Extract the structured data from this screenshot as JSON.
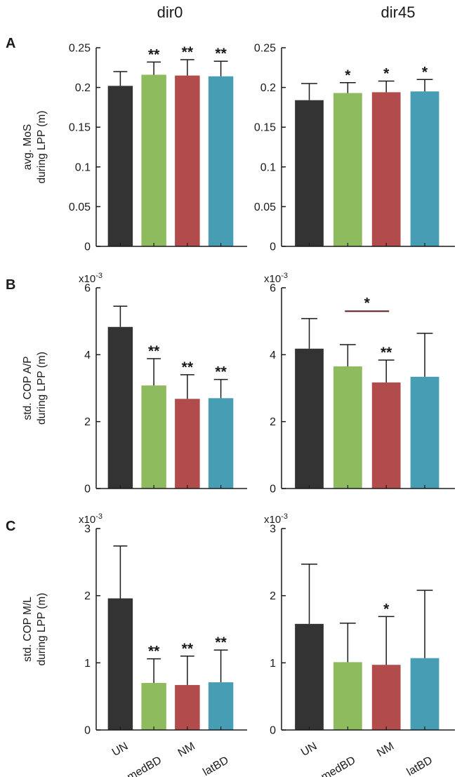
{
  "columns": [
    "dir0",
    "dir45"
  ],
  "categories": [
    "UN",
    "medBD",
    "NM",
    "latBD"
  ],
  "colors": [
    "#333333",
    "#8dbb5e",
    "#b14b4c",
    "#469db4"
  ],
  "chart_data": [
    {
      "type": "bar",
      "panel": "A",
      "column": "dir0",
      "ylabel": [
        "avg. MoS",
        "during LPP (m)"
      ],
      "multiplier": "",
      "ylim": [
        0,
        0.25
      ],
      "yticks": [
        "0",
        "0.05",
        "0.1",
        "0.15",
        "0.2",
        "0.25"
      ],
      "categories": [
        "UN",
        "medBD",
        "NM",
        "latBD"
      ],
      "values": [
        0.202,
        0.216,
        0.215,
        0.214
      ],
      "errors": [
        0.018,
        0.016,
        0.02,
        0.019
      ],
      "stars": [
        "",
        "**",
        "**",
        "**"
      ],
      "bracket": null
    },
    {
      "type": "bar",
      "panel": "",
      "column": "dir45",
      "ylabel": [],
      "multiplier": "",
      "ylim": [
        0,
        0.25
      ],
      "yticks": [
        "0",
        "0.05",
        "0.1",
        "0.15",
        "0.2",
        "0.25"
      ],
      "categories": [
        "UN",
        "medBD",
        "NM",
        "latBD"
      ],
      "values": [
        0.184,
        0.193,
        0.194,
        0.195
      ],
      "errors": [
        0.021,
        0.013,
        0.014,
        0.015
      ],
      "stars": [
        "",
        "*",
        "*",
        "*"
      ],
      "bracket": null
    },
    {
      "type": "bar",
      "panel": "B",
      "column": "dir0",
      "ylabel": [
        "std. COP A/P",
        "during LPP (m)"
      ],
      "multiplier": "x10",
      "multiplier_exp": "-3",
      "ylim": [
        0,
        6
      ],
      "yticks": [
        "0",
        "2",
        "4",
        "6"
      ],
      "ytick_values": [
        0,
        2,
        4,
        6
      ],
      "categories": [
        "UN",
        "medBD",
        "NM",
        "latBD"
      ],
      "values": [
        4.83,
        3.08,
        2.68,
        2.7
      ],
      "errors": [
        0.62,
        0.8,
        0.72,
        0.56
      ],
      "stars": [
        "",
        "**",
        "**",
        "**"
      ],
      "bracket": null
    },
    {
      "type": "bar",
      "panel": "",
      "column": "dir45",
      "ylabel": [],
      "multiplier": "x10",
      "multiplier_exp": "-3",
      "ylim": [
        0,
        6
      ],
      "yticks": [
        "0",
        "2",
        "4",
        "6"
      ],
      "ytick_values": [
        0,
        2,
        4,
        6
      ],
      "categories": [
        "UN",
        "medBD",
        "NM",
        "latBD"
      ],
      "values": [
        4.18,
        3.65,
        3.17,
        3.34
      ],
      "errors": [
        0.9,
        0.65,
        0.67,
        1.3
      ],
      "stars": [
        "",
        "",
        "**",
        ""
      ],
      "bracket": {
        "from": 1,
        "to": 2,
        "label": "*",
        "y": 5.3
      }
    },
    {
      "type": "bar",
      "panel": "C",
      "column": "dir0",
      "ylabel": [
        "std. COP M/L",
        "during LPP (m)"
      ],
      "multiplier": "x10",
      "multiplier_exp": "-3",
      "ylim": [
        0,
        3
      ],
      "yticks": [
        "0",
        "1",
        "2",
        "3"
      ],
      "ytick_values": [
        0,
        1,
        2,
        3
      ],
      "categories": [
        "UN",
        "medBD",
        "NM",
        "latBD"
      ],
      "values": [
        1.96,
        0.7,
        0.67,
        0.71
      ],
      "errors": [
        0.78,
        0.36,
        0.43,
        0.48
      ],
      "stars": [
        "",
        "**",
        "**",
        "**"
      ],
      "bracket": null
    },
    {
      "type": "bar",
      "panel": "",
      "column": "dir45",
      "ylabel": [],
      "multiplier": "x10",
      "multiplier_exp": "-3",
      "ylim": [
        0,
        3
      ],
      "yticks": [
        "0",
        "1",
        "2",
        "3"
      ],
      "ytick_values": [
        0,
        1,
        2,
        3
      ],
      "categories": [
        "UN",
        "medBD",
        "NM",
        "latBD"
      ],
      "values": [
        1.58,
        1.01,
        0.97,
        1.07
      ],
      "errors": [
        0.89,
        0.58,
        0.72,
        1.01
      ],
      "stars": [
        "",
        "",
        "*",
        ""
      ],
      "bracket": null
    }
  ]
}
